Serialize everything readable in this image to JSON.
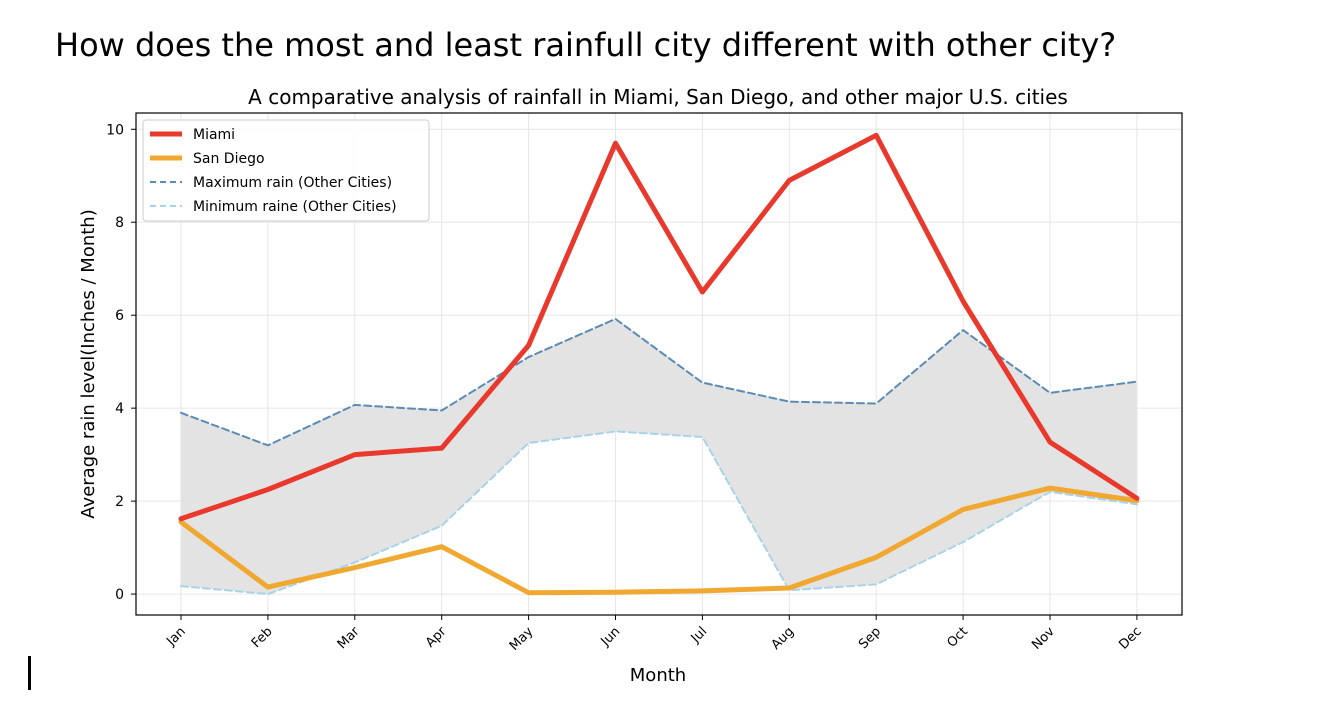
{
  "suptitle": "How does the most and least rainfull city different with other city?",
  "chart_data": {
    "type": "line",
    "title": "A comparative analysis of rainfall in Miami, San Diego, and other major U.S. cities",
    "xlabel": "Month",
    "ylabel": "Average rain level(Inches / Month)",
    "categories": [
      "Jan",
      "Feb",
      "Mar",
      "Apr",
      "May",
      "Jun",
      "Jul",
      "Aug",
      "Sep",
      "Oct",
      "Nov",
      "Dec"
    ],
    "ylim": [
      -0.45,
      10.35
    ],
    "yticks": [
      0,
      2,
      4,
      6,
      8,
      10
    ],
    "grid": true,
    "legend_position": "upper-left",
    "band": {
      "between": [
        "Maximum rain (Other Cities)",
        "Minimum raine (Other Cities)"
      ],
      "color": "#e3e3e3"
    },
    "series": [
      {
        "name": "Miami",
        "color": "#e8392c",
        "style": "solid",
        "values": [
          1.62,
          2.25,
          3.0,
          3.14,
          5.35,
          9.7,
          6.5,
          8.9,
          9.87,
          6.3,
          3.27,
          2.06
        ]
      },
      {
        "name": "San Diego",
        "color": "#f0a830",
        "style": "solid",
        "values": [
          1.55,
          0.15,
          0.57,
          1.02,
          0.03,
          0.04,
          0.07,
          0.13,
          0.79,
          1.82,
          2.28,
          2.01
        ]
      },
      {
        "name": "Maximum rain (Other Cities)",
        "color": "#5b8ab5",
        "style": "dashed",
        "values": [
          3.9,
          3.2,
          4.07,
          3.95,
          5.1,
          5.92,
          4.55,
          4.14,
          4.1,
          5.68,
          4.33,
          4.57
        ]
      },
      {
        "name": "Minimum raine (Other Cities)",
        "color": "#a8d3e6",
        "style": "dashed",
        "values": [
          0.17,
          0.0,
          0.68,
          1.47,
          3.25,
          3.5,
          3.38,
          0.08,
          0.21,
          1.12,
          2.2,
          1.93
        ]
      }
    ]
  }
}
